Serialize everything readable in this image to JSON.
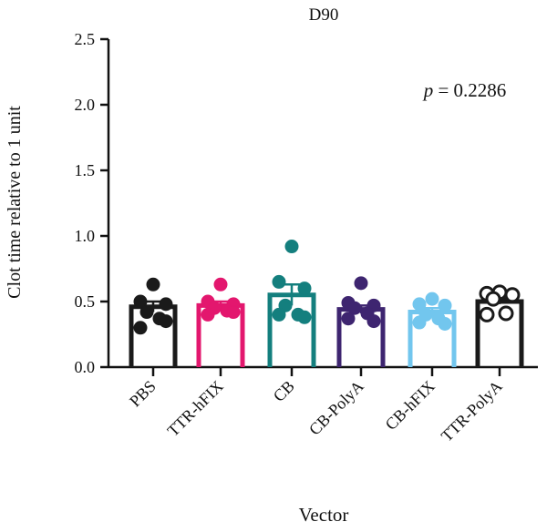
{
  "chart_data": {
    "type": "bar",
    "title": "D90",
    "xlabel": "Vector",
    "ylabel": "Clot time relative to 1 unit",
    "ylim": [
      0,
      2.5
    ],
    "yticks": [
      "0.0",
      "0.5",
      "1.0",
      "1.5",
      "2.0",
      "2.5"
    ],
    "grid": false,
    "annotation": {
      "italic": "p",
      "rest": " = 0.2286"
    },
    "categories": [
      "PBS",
      "TTR-hFIX",
      "CB",
      "CB-PolyA",
      "CB-hFIX",
      "TTR-PolyA"
    ],
    "means": [
      0.46,
      0.47,
      0.55,
      0.44,
      0.42,
      0.5
    ],
    "sem": [
      0.04,
      0.03,
      0.08,
      0.03,
      0.03,
      0.02
    ],
    "colors": [
      "#1a1a1a",
      "#e3176e",
      "#147f7e",
      "#3e2570",
      "#72c6ee",
      "#1a1a1a"
    ],
    "points": [
      [
        0.63,
        0.5,
        0.48,
        0.42,
        0.37,
        0.3,
        0.35
      ],
      [
        0.63,
        0.5,
        0.48,
        0.45,
        0.43,
        0.4,
        0.42
      ],
      [
        0.92,
        0.65,
        0.6,
        0.47,
        0.4,
        0.4,
        0.38
      ],
      [
        0.64,
        0.49,
        0.47,
        0.45,
        0.41,
        0.37,
        0.35
      ],
      [
        0.52,
        0.48,
        0.47,
        0.4,
        0.37,
        0.34,
        0.33
      ],
      [
        0.57,
        0.56,
        0.55,
        0.52,
        0.41,
        0.4
      ]
    ],
    "hollow": [
      false,
      false,
      false,
      false,
      false,
      true
    ]
  }
}
